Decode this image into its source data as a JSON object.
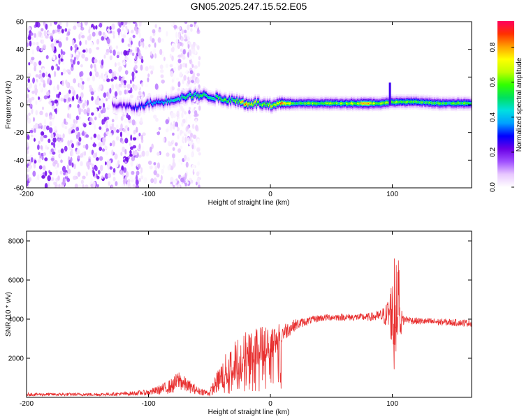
{
  "title": "GN05.2025.247.15.52.E05",
  "chart_data": [
    {
      "type": "heatmap",
      "title": "GN05.2025.247.15.52.E05",
      "xlabel": "Height of straight line (km)",
      "ylabel": "Frequency (Hz)",
      "xlim": [
        -200,
        165
      ],
      "ylim": [
        -60,
        60
      ],
      "xticks": [
        -200,
        -100,
        0,
        100
      ],
      "yticks": [
        -60,
        -40,
        -20,
        0,
        20,
        40,
        60
      ],
      "colorbar": {
        "label": "Normalized spectral amplitude",
        "range": [
          0,
          0.95
        ],
        "ticks": [
          0.0,
          0.2,
          0.4,
          0.6,
          0.8
        ],
        "colors": [
          "#ffffff",
          "#e8c8ff",
          "#a050ff",
          "#6a00e6",
          "#0000ff",
          "#00a0ff",
          "#00e0e0",
          "#00e060",
          "#30ff00",
          "#c0ff00",
          "#ffff00",
          "#ffa000",
          "#ff3000",
          "#ff0060"
        ]
      },
      "ridge": [
        {
          "x": -130,
          "f": 0,
          "amp": 0.2
        },
        {
          "x": -110,
          "f": -2,
          "amp": 0.3
        },
        {
          "x": -100,
          "f": 1,
          "amp": 0.35
        },
        {
          "x": -90,
          "f": 2,
          "amp": 0.4
        },
        {
          "x": -80,
          "f": 4,
          "amp": 0.45
        },
        {
          "x": -70,
          "f": 6,
          "amp": 0.5
        },
        {
          "x": -60,
          "f": 7,
          "amp": 0.55
        },
        {
          "x": -50,
          "f": 6,
          "amp": 0.5
        },
        {
          "x": -40,
          "f": 4,
          "amp": 0.55
        },
        {
          "x": -30,
          "f": 3,
          "amp": 0.6
        },
        {
          "x": -20,
          "f": 1,
          "amp": 0.8
        },
        {
          "x": -10,
          "f": 1,
          "amp": 0.6
        },
        {
          "x": 0,
          "f": -1,
          "amp": 0.7
        },
        {
          "x": 10,
          "f": 1,
          "amp": 0.85
        },
        {
          "x": 20,
          "f": 1,
          "amp": 0.55
        },
        {
          "x": 40,
          "f": 1,
          "amp": 0.6
        },
        {
          "x": 60,
          "f": 1,
          "amp": 0.6
        },
        {
          "x": 80,
          "f": 1,
          "amp": 0.75
        },
        {
          "x": 90,
          "f": 1,
          "amp": 0.6
        },
        {
          "x": 100,
          "f": 2,
          "amp": 0.6
        },
        {
          "x": 120,
          "f": 2,
          "amp": 0.55
        },
        {
          "x": 140,
          "f": 1,
          "amp": 0.55
        },
        {
          "x": 165,
          "f": 1,
          "amp": 0.55
        }
      ],
      "spike": {
        "x": 98,
        "f_from": 0,
        "f_to": 16
      }
    },
    {
      "type": "line",
      "xlabel": "Height of straight line (km)",
      "ylabel": "SNR (10 * v/v)",
      "xlim": [
        -200,
        165
      ],
      "ylim": [
        0,
        8500
      ],
      "xticks": [
        -200,
        -100,
        0,
        100
      ],
      "yticks": [
        2000,
        4000,
        6000,
        8000
      ],
      "series": [
        {
          "name": "SNR",
          "color": "#e83030",
          "x": [
            -200,
            -180,
            -160,
            -140,
            -120,
            -100,
            -90,
            -80,
            -75,
            -70,
            -60,
            -50,
            -40,
            -30,
            -20,
            -10,
            0,
            10,
            20,
            30,
            40,
            50,
            60,
            70,
            80,
            90,
            95,
            100,
            102,
            104,
            106,
            110,
            120,
            140,
            165
          ],
          "y": [
            150,
            150,
            150,
            150,
            180,
            250,
            400,
            600,
            900,
            650,
            350,
            200,
            1100,
            1800,
            2200,
            2500,
            2800,
            3300,
            3700,
            3900,
            4050,
            4100,
            4100,
            4100,
            4100,
            4150,
            4200,
            4400,
            3000,
            5000,
            3800,
            4000,
            3900,
            3850,
            3800
          ],
          "noise": [
            80,
            80,
            80,
            80,
            90,
            150,
            250,
            400,
            500,
            400,
            200,
            150,
            800,
            1100,
            1300,
            1200,
            900,
            500,
            300,
            200,
            180,
            180,
            180,
            180,
            200,
            300,
            600,
            1800,
            2500,
            2000,
            900,
            200,
            180,
            180,
            180
          ]
        }
      ]
    }
  ]
}
